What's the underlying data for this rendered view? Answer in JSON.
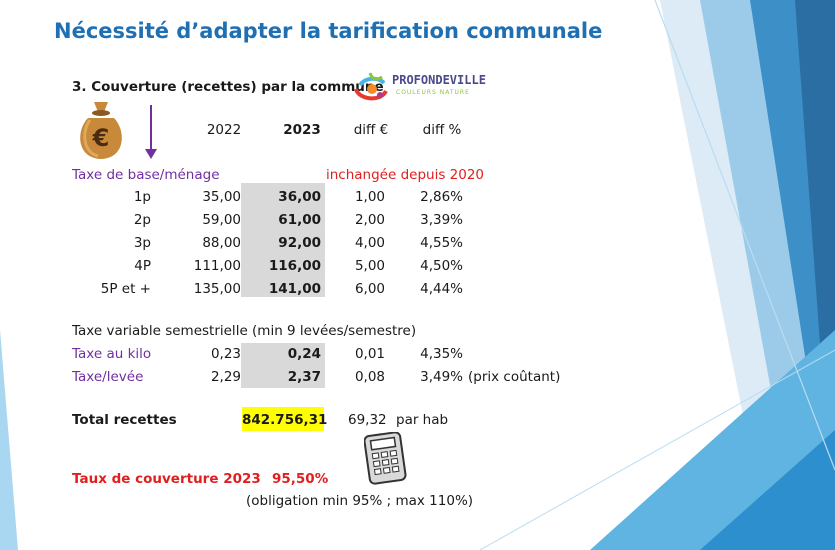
{
  "slide": {
    "title": "Nécessité d’adapter la tarification communale",
    "section_title": "3. Couverture (recettes) par la commune",
    "logo": {
      "name": "PROFONDEVILLE",
      "tagline": "COULEURS NATURE"
    },
    "icons": {
      "money_bag": "money-bag-icon",
      "arrow": "down-arrow-icon",
      "calculator": "calculator-icon"
    },
    "colors": {
      "title": "#1f6fb3",
      "purple": "#7030a0",
      "red": "#e02020",
      "highlight": "#ffff00",
      "grey": "#d9d9d9"
    }
  },
  "table": {
    "headers": [
      "2022",
      "2023",
      "diff €",
      "diff %"
    ],
    "base_label": "Taxe de base/ménage",
    "base_note": "inchangée depuis 2020",
    "base_rows": [
      {
        "label": "1p",
        "y2022": "35,00",
        "y2023": "36,00",
        "diff_eur": "1,00",
        "diff_pct": "2,86%"
      },
      {
        "label": "2p",
        "y2022": "59,00",
        "y2023": "61,00",
        "diff_eur": "2,00",
        "diff_pct": "3,39%"
      },
      {
        "label": "3p",
        "y2022": "88,00",
        "y2023": "92,00",
        "diff_eur": "4,00",
        "diff_pct": "4,55%"
      },
      {
        "label": "4P",
        "y2022": "111,00",
        "y2023": "116,00",
        "diff_eur": "5,00",
        "diff_pct": "4,50%"
      },
      {
        "label": "5P et +",
        "y2022": "135,00",
        "y2023": "141,00",
        "diff_eur": "6,00",
        "diff_pct": "4,44%"
      }
    ],
    "variable_label": "Taxe variable semestrielle (min 9 levées/semestre)",
    "variable_rows": [
      {
        "label": "Taxe au kilo",
        "y2022": "0,23",
        "y2023": "0,24",
        "diff_eur": "0,01",
        "diff_pct": "4,35%",
        "note": ""
      },
      {
        "label": "Taxe/levée",
        "y2022": "2,29",
        "y2023": "2,37",
        "diff_eur": "0,08",
        "diff_pct": "3,49%",
        "note": "(prix coûtant)"
      }
    ]
  },
  "totals": {
    "label": "Total recettes",
    "value": "842.756,31",
    "per_hab_value": "69,32",
    "per_hab_label": "par hab"
  },
  "coverage": {
    "label": "Taux de couverture 2023",
    "value": "95,50%",
    "note": "(obligation min 95% ; max 110%)"
  }
}
